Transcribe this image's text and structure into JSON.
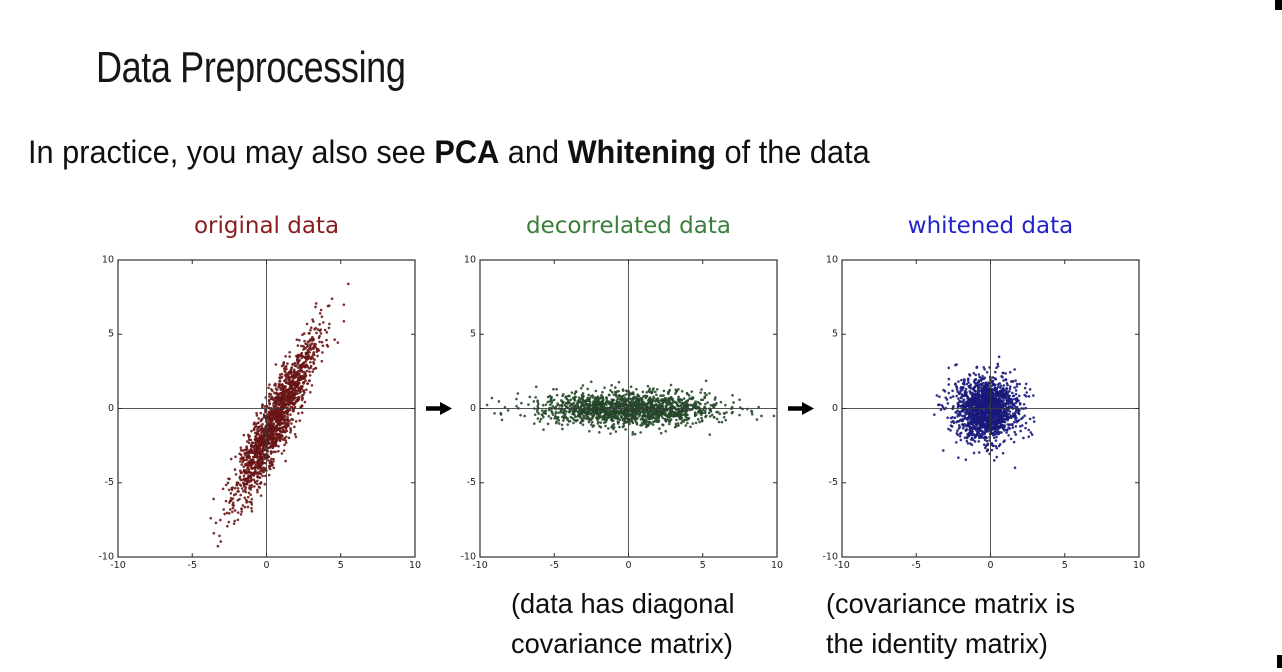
{
  "header": {
    "title": "Data Preprocessing"
  },
  "subtitle": {
    "parts": [
      {
        "text": "In practice, you may also see "
      },
      {
        "text": "PCA"
      },
      {
        "text": " and "
      },
      {
        "text": "Whitening"
      },
      {
        "text": " of the data"
      }
    ]
  },
  "figure": {
    "arrow_color": "#000000",
    "captions": [
      {
        "lines": [
          "(data has diagonal",
          "covariance matrix)"
        ]
      },
      {
        "lines": [
          "(covariance matrix is",
          "the identity matrix)"
        ]
      }
    ]
  },
  "chart_data": [
    {
      "type": "scatter",
      "title": "original data",
      "title_color": "#8b1c1c",
      "point_color": "#7d1a1a",
      "point_edge_color": "#4c0d0d",
      "axis_color": "#2e2e2e",
      "xlim": [
        -10,
        10
      ],
      "ylim": [
        -10,
        10
      ],
      "xticks": [
        -10,
        -5,
        0,
        5,
        10
      ],
      "yticks": [
        -10,
        -5,
        0,
        5,
        10
      ],
      "grid": false,
      "legend": false,
      "description": "Correlated 2D gaussian cloud tilted steeply upward, spanning roughly (-3.5,-9.3) to (4.7,7.7)",
      "distribution": {
        "n": 1600,
        "center": [
          0.55,
          -0.9
        ],
        "sigma": [
          3.1,
          0.55
        ],
        "angle_deg": 64.5,
        "seed": 42
      }
    },
    {
      "type": "scatter",
      "title": "decorrelated data",
      "title_color": "#3b7d3b",
      "point_color": "#2f5631",
      "point_edge_color": "#18331c",
      "axis_color": "#2e2e2e",
      "xlim": [
        -10,
        10
      ],
      "ylim": [
        -10,
        10
      ],
      "xticks": [
        -10,
        -5,
        0,
        5,
        10
      ],
      "yticks": [
        -10,
        -5,
        0,
        5,
        10
      ],
      "grid": false,
      "legend": false,
      "description": "Axis-aligned horizontal gaussian band centered at origin, x from about -9 to 8, y within about ±1.8",
      "distribution": {
        "n": 1600,
        "center": [
          0,
          0
        ],
        "sigma": [
          2.9,
          0.55
        ],
        "angle_deg": 0,
        "seed": 7
      }
    },
    {
      "type": "scatter",
      "title": "whitened data",
      "title_color": "#2323cc",
      "point_color": "#20209a",
      "point_edge_color": "#10104e",
      "axis_color": "#2e2e2e",
      "xlim": [
        -10,
        10
      ],
      "ylim": [
        -10,
        10
      ],
      "xticks": [
        -10,
        -5,
        0,
        5,
        10
      ],
      "yticks": [
        -10,
        -5,
        0,
        5,
        10
      ],
      "grid": false,
      "legend": false,
      "description": "Isotropic circular gaussian blob centered near origin with radius about 3.5",
      "distribution": {
        "n": 1600,
        "center": [
          -0.25,
          -0.05
        ],
        "sigma": [
          1.1,
          1.05
        ],
        "angle_deg": 0,
        "seed": 13
      }
    }
  ]
}
